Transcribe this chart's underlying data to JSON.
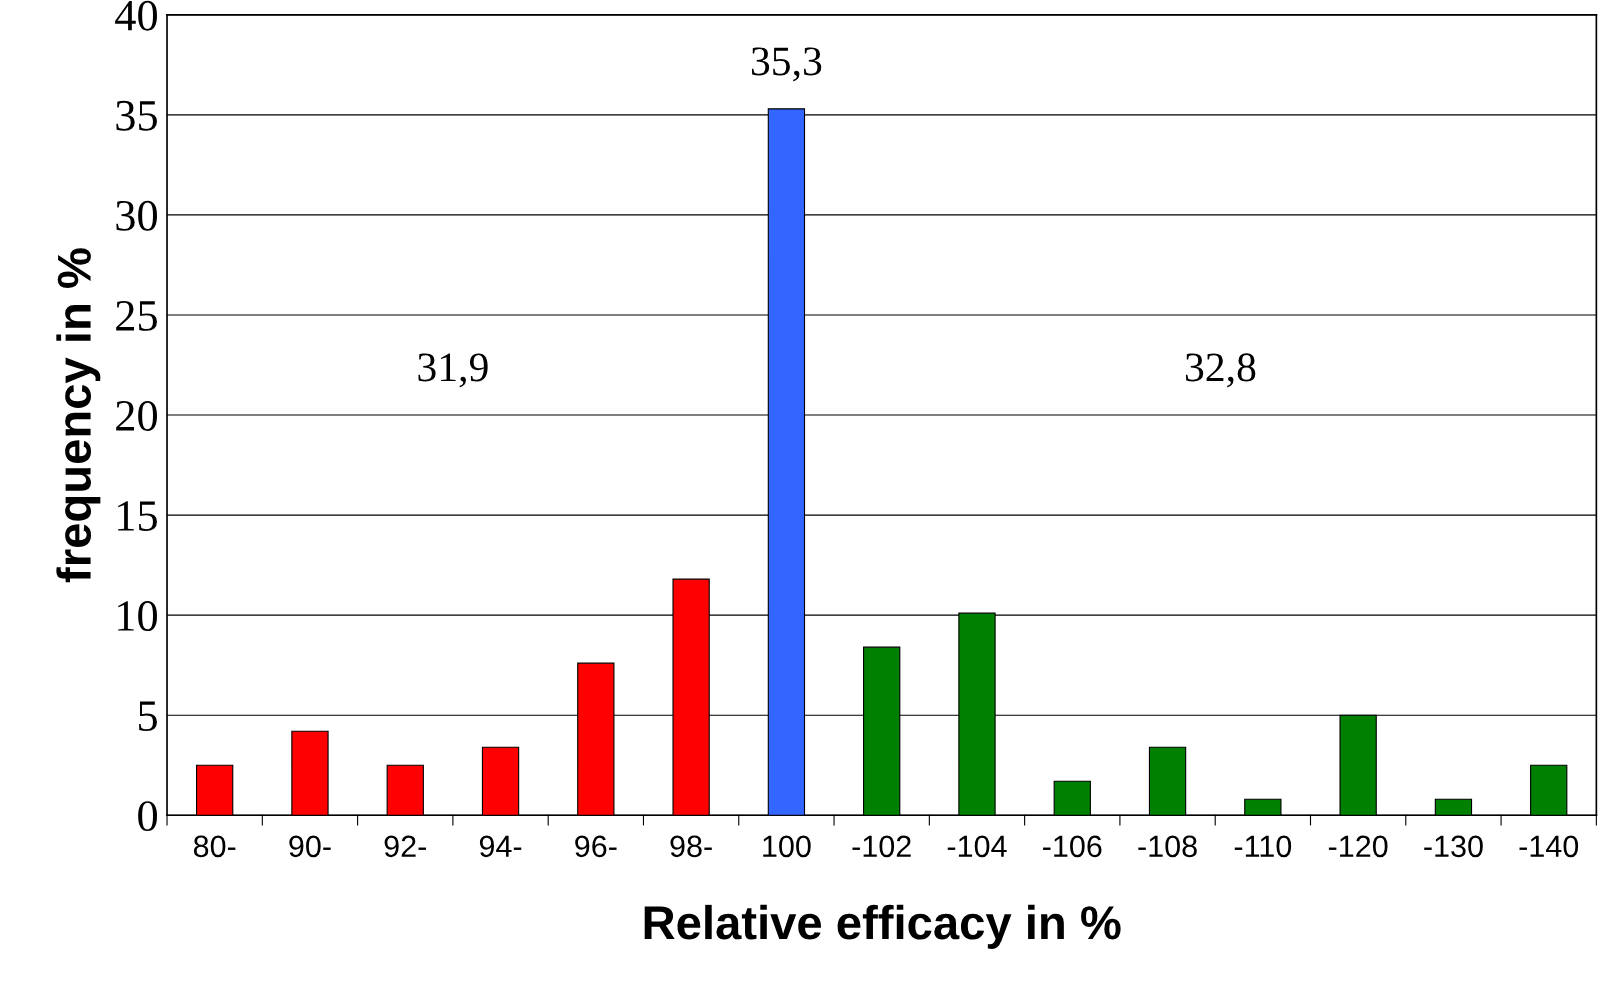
{
  "chart_data": {
    "type": "bar",
    "xlabel": "Relative efficacy in %",
    "ylabel": "frequency in %",
    "categories": [
      "80-",
      "90-",
      "92-",
      "94-",
      "96-",
      "98-",
      "100",
      "-102",
      "-104",
      "-106",
      "-108",
      "-110",
      "-120",
      "-130",
      "-140"
    ],
    "values": [
      2.5,
      4.2,
      2.5,
      3.4,
      7.6,
      11.8,
      35.3,
      8.4,
      10.1,
      1.7,
      3.4,
      0.8,
      5.0,
      0.8,
      2.5
    ],
    "colors": [
      "#ff0000",
      "#ff0000",
      "#ff0000",
      "#ff0000",
      "#ff0000",
      "#ff0000",
      "#3366ff",
      "#008000",
      "#008000",
      "#008000",
      "#008000",
      "#008000",
      "#008000",
      "#008000",
      "#008000"
    ],
    "value_labels": [
      null,
      null,
      null,
      null,
      null,
      null,
      "35,3",
      null,
      null,
      null,
      null,
      null,
      null,
      null,
      null
    ],
    "annotations": [
      "31,9",
      "32,8"
    ],
    "ylim": [
      0,
      40
    ],
    "yticks": [
      0,
      5,
      10,
      15,
      20,
      25,
      30,
      35,
      40
    ],
    "grid": "y"
  }
}
